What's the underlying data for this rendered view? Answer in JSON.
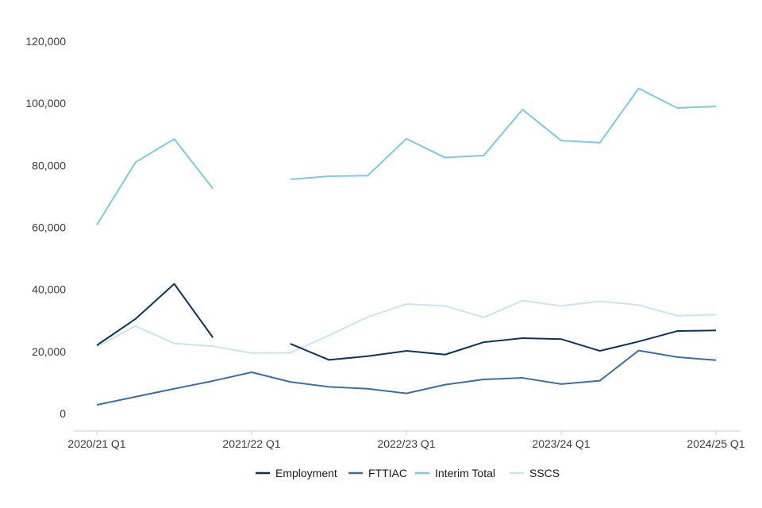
{
  "chart_data": {
    "type": "line",
    "title": "",
    "xlabel": "",
    "ylabel": "",
    "ylim": [
      0,
      120000
    ],
    "y_ticks": [
      0,
      20000,
      40000,
      60000,
      80000,
      100000,
      120000
    ],
    "y_tick_labels": [
      "0",
      "20,000",
      "40,000",
      "60,000",
      "80,000",
      "100,000",
      "120,000"
    ],
    "x_tick_labels": [
      {
        "index": 0,
        "label": "2020/21 Q1"
      },
      {
        "index": 4,
        "label": "2021/22 Q1"
      },
      {
        "index": 8,
        "label": "2022/23 Q1"
      },
      {
        "index": 12,
        "label": "2023/24 Q1"
      },
      {
        "index": 16,
        "label": "2024/25 Q1"
      }
    ],
    "categories": [
      "2020/21 Q1",
      "2020/21 Q2",
      "2020/21 Q3",
      "2020/21 Q4",
      "2021/22 Q1",
      "2021/22 Q2",
      "2021/22 Q3",
      "2021/22 Q4",
      "2022/23 Q1",
      "2022/23 Q2",
      "2022/23 Q3",
      "2022/23 Q4",
      "2023/24 Q1",
      "2023/24 Q2",
      "2023/24 Q3",
      "2023/24 Q4",
      "2024/25 Q1"
    ],
    "grid": false,
    "legend_position": "bottom",
    "series": [
      {
        "name": "Employment",
        "color": "#0b3558",
        "values": [
          22000,
          30500,
          41800,
          24500,
          null,
          22500,
          17300,
          18500,
          20200,
          19000,
          23000,
          24300,
          24000,
          20200,
          23200,
          26600,
          26800
        ]
      },
      {
        "name": "FTTIAC",
        "color": "#3d6f9e",
        "values": [
          2800,
          5400,
          8000,
          10500,
          13300,
          10200,
          8600,
          8000,
          6500,
          9300,
          11000,
          11500,
          9500,
          10600,
          20300,
          18200,
          17200
        ]
      },
      {
        "name": "Interim Total",
        "color": "#7ec9dd",
        "values": [
          60800,
          81000,
          88500,
          72500,
          null,
          75500,
          76500,
          76700,
          88600,
          82500,
          83200,
          98000,
          88000,
          87300,
          104800,
          98500,
          99000
        ]
      },
      {
        "name": "SSCS",
        "color": "#c9e5ef",
        "values": [
          21500,
          28200,
          22600,
          21700,
          19500,
          19600,
          25200,
          31100,
          35300,
          34700,
          31000,
          36400,
          34700,
          36200,
          35000,
          31500,
          31900
        ]
      }
    ]
  }
}
